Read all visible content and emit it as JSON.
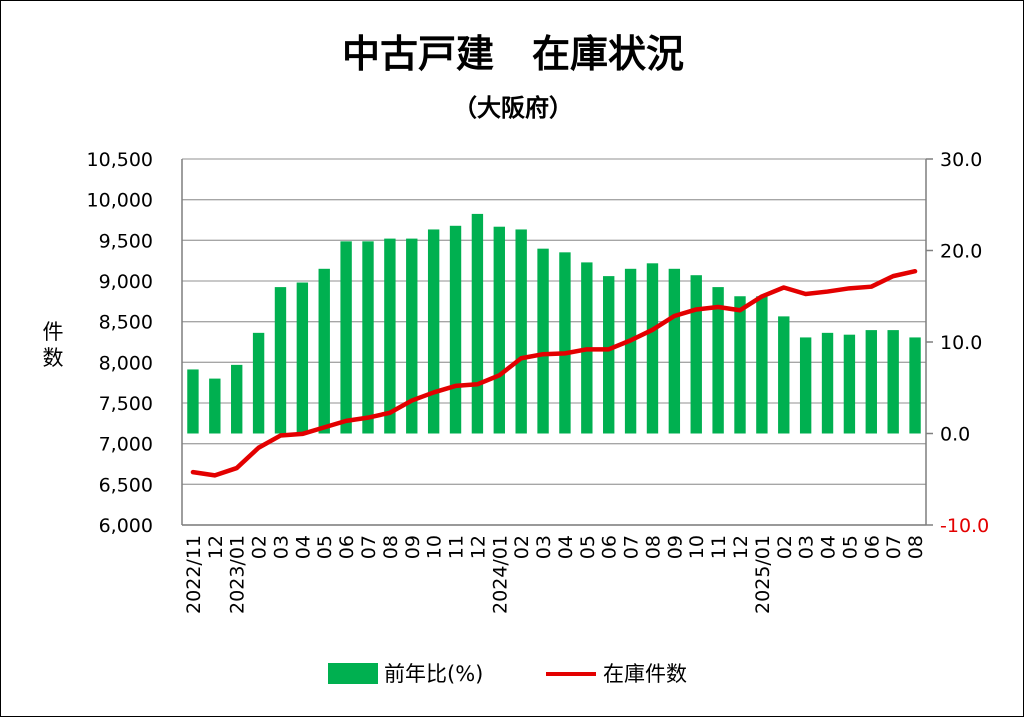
{
  "chart_data": {
    "type": "bar",
    "title": "中古戸建　在庫状況",
    "subtitle": "（大阪府）",
    "ylabel": "件数",
    "y_left": {
      "min": 6000,
      "max": 10500,
      "step": 500,
      "ticks": [
        "6,000",
        "6,500",
        "7,000",
        "7,500",
        "8,000",
        "8,500",
        "9,000",
        "9,500",
        "10,000",
        "10,500"
      ]
    },
    "y_right": {
      "min": -10,
      "max": 30,
      "step": 10,
      "ticks": [
        "-10.0",
        "0.0",
        "10.0",
        "20.0",
        "30.0"
      ],
      "color": "#e30000"
    },
    "categories": [
      "2022/11",
      "12",
      "2023/01",
      "02",
      "03",
      "04",
      "05",
      "06",
      "07",
      "08",
      "09",
      "10",
      "11",
      "12",
      "2024/01",
      "02",
      "03",
      "04",
      "05",
      "06",
      "07",
      "08",
      "09",
      "10",
      "11",
      "12",
      "2025/01",
      "02",
      "03",
      "04",
      "05",
      "06",
      "07",
      "08"
    ],
    "grid": true,
    "legend_position": "bottom",
    "series": [
      {
        "name": "前年比(%)",
        "type": "bar",
        "axis": "right",
        "color": "#00b050",
        "values": [
          7.0,
          6.0,
          7.5,
          11.0,
          16.0,
          16.5,
          18.0,
          21.0,
          21.0,
          21.3,
          21.3,
          22.3,
          22.7,
          24.0,
          22.6,
          22.3,
          20.2,
          19.8,
          18.7,
          17.2,
          18.0,
          18.6,
          18.0,
          17.3,
          16.0,
          15.0,
          15.0,
          12.8,
          10.5,
          11.0,
          10.8,
          11.3,
          11.3,
          10.5
        ]
      },
      {
        "name": "在庫件数",
        "type": "line",
        "axis": "left",
        "color": "#e30000",
        "values": [
          6650,
          6610,
          6700,
          6950,
          7100,
          7120,
          7200,
          7280,
          7320,
          7380,
          7530,
          7630,
          7710,
          7730,
          7840,
          8050,
          8100,
          8110,
          8160,
          8160,
          8270,
          8400,
          8570,
          8650,
          8680,
          8640,
          8810,
          8920,
          8840,
          8870,
          8910,
          8930,
          9060,
          9120
        ]
      }
    ]
  },
  "legend": {
    "bar_label": "前年比(%)",
    "line_label": "在庫件数"
  },
  "colors": {
    "bar": "#00b050",
    "line": "#e30000",
    "grid": "#a6a6a6"
  }
}
